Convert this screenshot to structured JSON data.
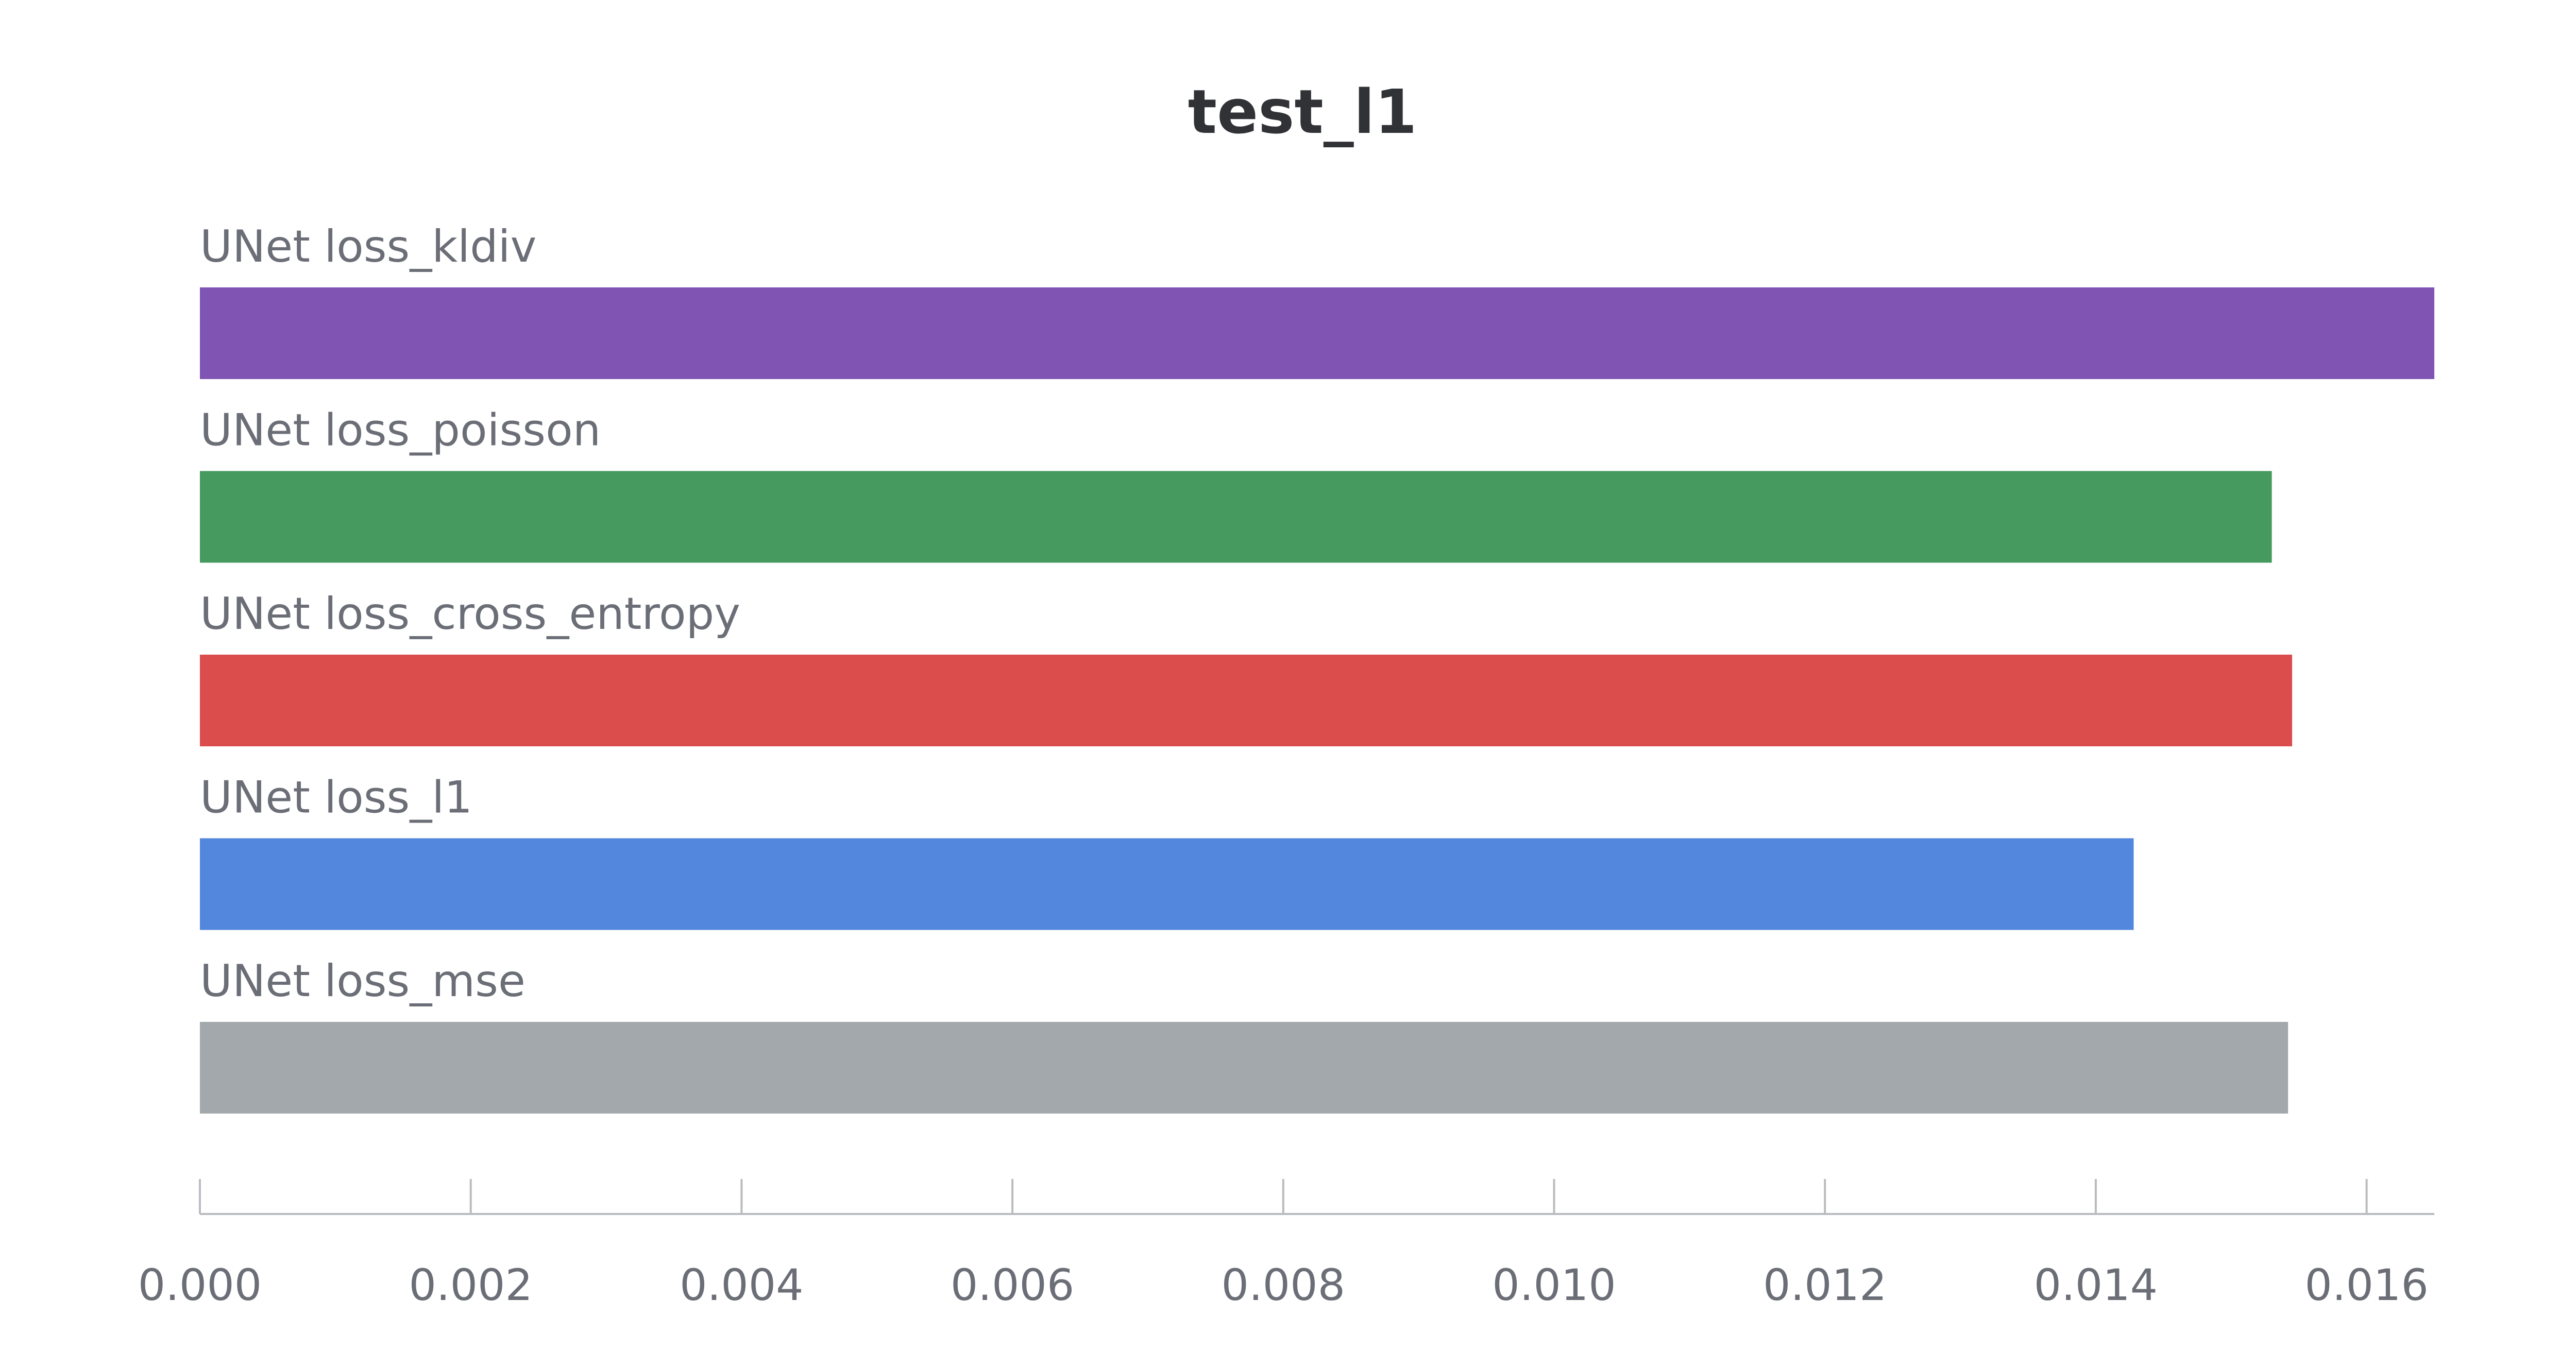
{
  "chart_data": {
    "type": "bar",
    "orientation": "horizontal",
    "title": "test_l1",
    "xlabel": "",
    "ylabel": "",
    "xlim": [
      0,
      0.0165
    ],
    "xticks": [
      "0.000",
      "0.002",
      "0.004",
      "0.006",
      "0.008",
      "0.010",
      "0.012",
      "0.014",
      "0.016"
    ],
    "grid": false,
    "legend": "none",
    "categories": [
      "UNet loss_kldiv",
      "UNet loss_poisson",
      "UNet loss_cross_entropy",
      "UNet loss_l1",
      "UNet loss_mse"
    ],
    "values": [
      0.0165,
      0.0153,
      0.01545,
      0.01428,
      0.01542
    ],
    "colors": [
      "#7f54b3",
      "#479a5f",
      "#db4c4c",
      "#5387dd",
      "#a2a8ab"
    ]
  }
}
